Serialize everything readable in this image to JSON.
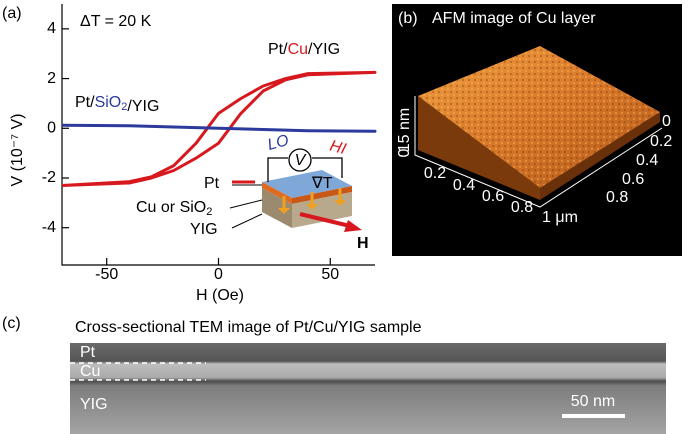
{
  "panel_labels": [
    "(a)",
    "(b)",
    "(c)"
  ],
  "chart_data": {
    "type": "line",
    "annotation": "ΔT = 20 K",
    "xlabel": "H (Oe)",
    "ylabel": "V (10⁻⁷ V)",
    "xlim": [
      -70,
      70
    ],
    "xticks": [
      -50,
      0,
      50
    ],
    "ylim": [
      -5.5,
      5
    ],
    "yticks": [
      -4,
      -2,
      0,
      2,
      4
    ],
    "series": [
      {
        "name": "Pt/Cu/YIG",
        "color": "#d7191f",
        "x": [
          -70,
          -40,
          -30,
          -20,
          -10,
          0,
          5,
          10,
          20,
          30,
          40,
          70,
          70,
          40,
          30,
          20,
          10,
          0,
          -5,
          -10,
          -20,
          -30,
          -40,
          -70
        ],
        "values": [
          -2.3,
          -2.2,
          -2.0,
          -1.7,
          -1.2,
          -0.6,
          0.0,
          0.6,
          1.5,
          1.95,
          2.15,
          2.25,
          2.25,
          2.2,
          2.0,
          1.7,
          1.2,
          0.6,
          0.0,
          -0.6,
          -1.5,
          -1.95,
          -2.15,
          -2.3
        ]
      },
      {
        "name": "Pt/SiO2/YIG",
        "color": "#2b3a9c",
        "x": [
          -70,
          -40,
          -20,
          0,
          20,
          40,
          70,
          70,
          40,
          20,
          0,
          -20,
          -40,
          -70
        ],
        "values": [
          0.12,
          0.1,
          0.05,
          0.0,
          -0.05,
          -0.1,
          -0.12,
          -0.12,
          -0.1,
          -0.05,
          0.0,
          0.05,
          0.1,
          0.12
        ]
      }
    ]
  },
  "inset": {
    "layers": [
      "Pt",
      "Cu or SiO2",
      "YIG"
    ],
    "lo": "LO",
    "hi": "HI",
    "meter": "V",
    "gradient": "∇T",
    "field": "H"
  },
  "afm": {
    "title": "AFM image of Cu layer",
    "z_label": "15 nm",
    "z_zero": "0",
    "front_ticks": [
      "0.2",
      "0.4",
      "0.6",
      "0.8",
      "1 μm"
    ],
    "side_ticks": [
      "0",
      "0.2",
      "0.4",
      "0.6",
      "0.8"
    ]
  },
  "tem": {
    "title": "Cross-sectional TEM image of Pt/Cu/YIG sample",
    "layers": [
      "Pt",
      "Cu",
      "YIG"
    ],
    "scale": "50 nm"
  }
}
